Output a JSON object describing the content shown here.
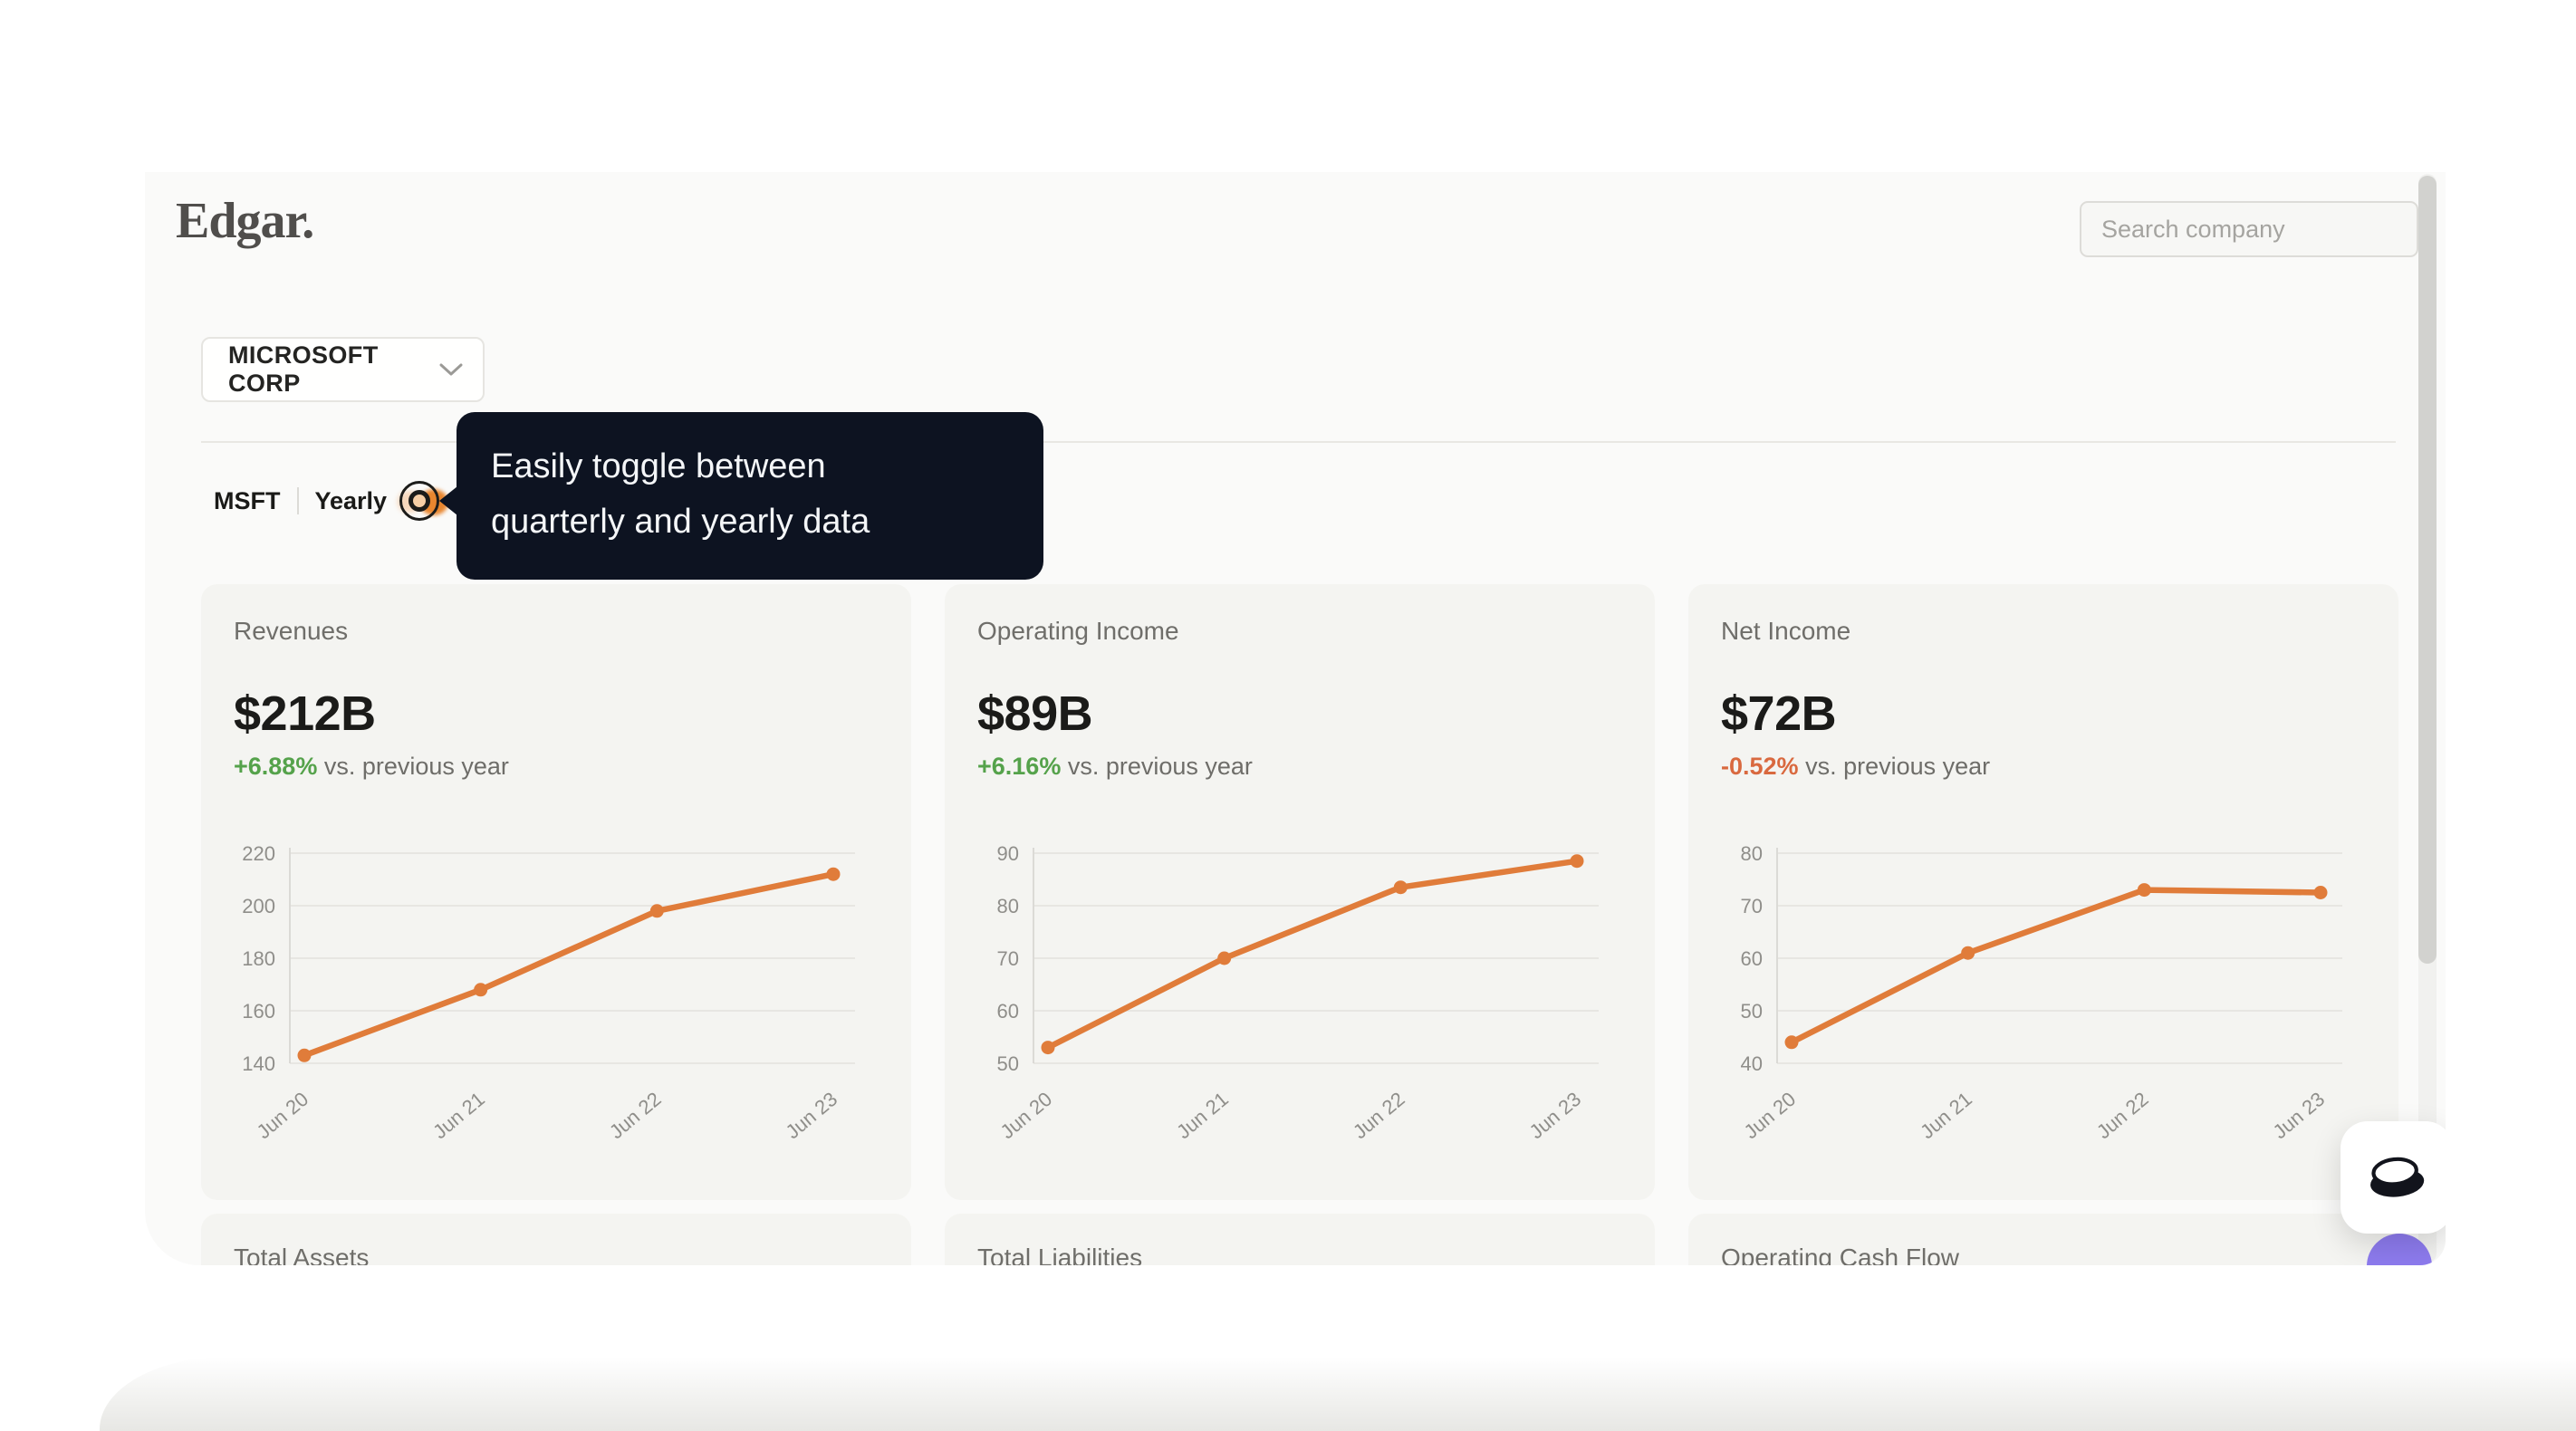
{
  "header": {
    "logo_text": "Edgar.",
    "search_placeholder": "Search company"
  },
  "company_selector": {
    "selected": "MICROSOFT CORP"
  },
  "ticker_bar": {
    "ticker": "MSFT",
    "period": "Yearly"
  },
  "tooltip": {
    "lines": [
      "Easily toggle between",
      "quarterly and yearly data"
    ]
  },
  "metric_cards": [
    {
      "title": "Revenues",
      "value": "$212B",
      "delta": "+6.88%",
      "delta_direction": "up",
      "delta_note": " vs. previous year"
    },
    {
      "title": "Operating Income",
      "value": "$89B",
      "delta": "+6.16%",
      "delta_direction": "up",
      "delta_note": " vs. previous year"
    },
    {
      "title": "Net Income",
      "value": "$72B",
      "delta": "-0.52%",
      "delta_direction": "down",
      "delta_note": " vs. previous year"
    }
  ],
  "partial_cards": [
    {
      "title": "Total Assets"
    },
    {
      "title": "Total Liabilities"
    },
    {
      "title": "Operating Cash Flow"
    }
  ],
  "chart_data": [
    {
      "type": "line",
      "title": "Revenues",
      "unit": "$B",
      "x": [
        "Jun 20",
        "Jun 21",
        "Jun 22",
        "Jun 23"
      ],
      "values": [
        143,
        168,
        198,
        212
      ],
      "ylim": [
        140,
        220
      ],
      "yticks": [
        140,
        160,
        180,
        200,
        220
      ],
      "grid": true,
      "legend": "none"
    },
    {
      "type": "line",
      "title": "Operating Income",
      "unit": "$B",
      "x": [
        "Jun 20",
        "Jun 21",
        "Jun 22",
        "Jun 23"
      ],
      "values": [
        53,
        70,
        83.5,
        88.5
      ],
      "ylim": [
        50,
        90
      ],
      "yticks": [
        50,
        60,
        70,
        80,
        90
      ],
      "grid": true,
      "legend": "none"
    },
    {
      "type": "line",
      "title": "Net Income",
      "unit": "$B",
      "x": [
        "Jun 20",
        "Jun 21",
        "Jun 22",
        "Jun 23"
      ],
      "values": [
        44,
        61,
        73,
        72.5
      ],
      "ylim": [
        40,
        80
      ],
      "yticks": [
        40,
        50,
        60,
        70,
        80
      ],
      "grid": true,
      "legend": "none"
    }
  ],
  "colors": {
    "accent_line": "#e07c3a",
    "delta_up": "#55a24b",
    "delta_down": "#d9693f",
    "tooltip_bg": "#0d1321",
    "fab_purple": "#8d7bee"
  }
}
